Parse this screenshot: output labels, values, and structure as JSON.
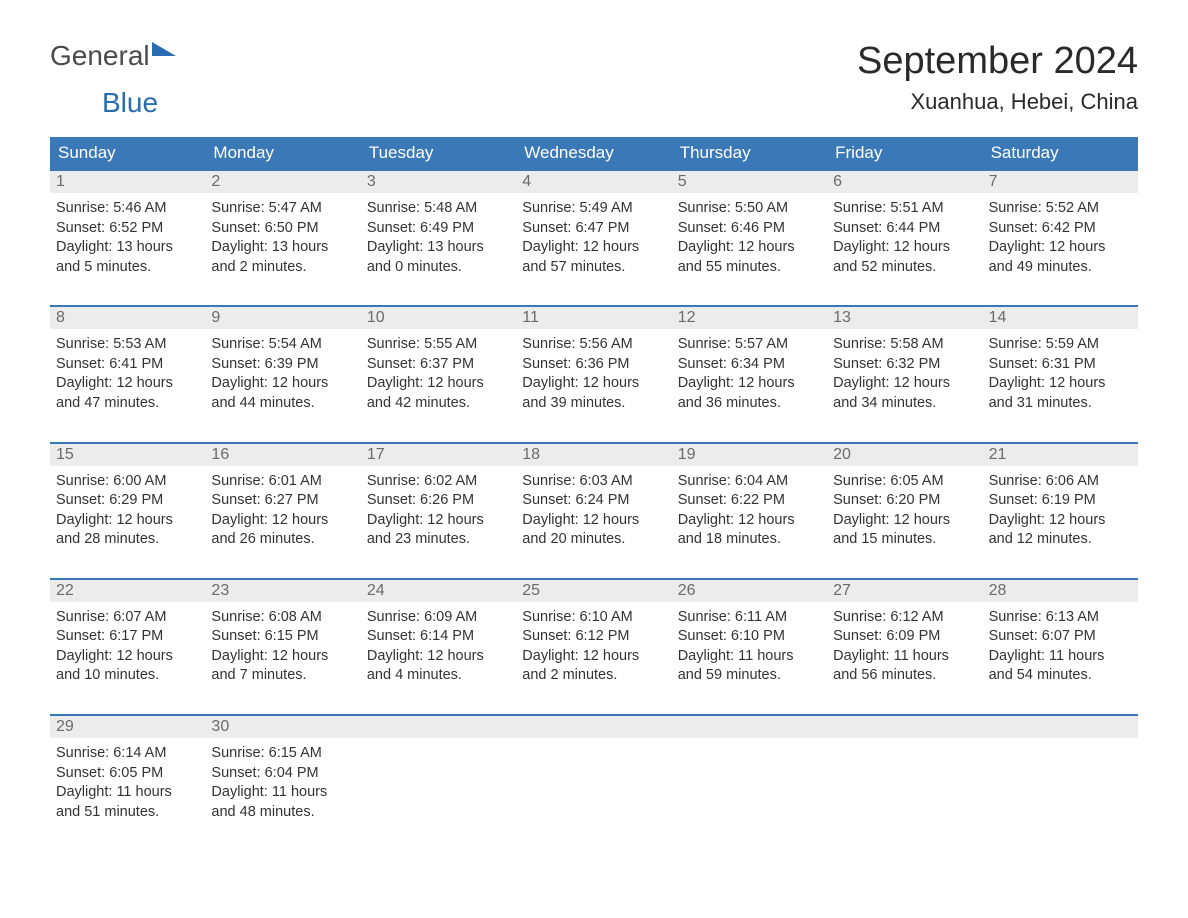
{
  "logo": {
    "text_general": "General",
    "text_blue": "Blue"
  },
  "title": "September 2024",
  "location": "Xuanhua, Hebei, China",
  "colors": {
    "header_bg": "#3b78b8",
    "header_text": "#ffffff",
    "daynum_bg": "#ececec",
    "daynum_text": "#6b6b6b",
    "body_text": "#333333",
    "row_border": "#3b78b8",
    "page_bg": "#ffffff",
    "logo_blue": "#2a6cb0",
    "logo_gray": "#4a4a4a"
  },
  "fonts": {
    "title_size_pt": 29,
    "location_size_pt": 17,
    "weekday_size_pt": 13,
    "daynum_size_pt": 12,
    "body_size_pt": 11
  },
  "weekdays": [
    "Sunday",
    "Monday",
    "Tuesday",
    "Wednesday",
    "Thursday",
    "Friday",
    "Saturday"
  ],
  "weeks": [
    [
      {
        "day": "1",
        "sunrise": "Sunrise: 5:46 AM",
        "sunset": "Sunset: 6:52 PM",
        "daylight1": "Daylight: 13 hours",
        "daylight2": "and 5 minutes."
      },
      {
        "day": "2",
        "sunrise": "Sunrise: 5:47 AM",
        "sunset": "Sunset: 6:50 PM",
        "daylight1": "Daylight: 13 hours",
        "daylight2": "and 2 minutes."
      },
      {
        "day": "3",
        "sunrise": "Sunrise: 5:48 AM",
        "sunset": "Sunset: 6:49 PM",
        "daylight1": "Daylight: 13 hours",
        "daylight2": "and 0 minutes."
      },
      {
        "day": "4",
        "sunrise": "Sunrise: 5:49 AM",
        "sunset": "Sunset: 6:47 PM",
        "daylight1": "Daylight: 12 hours",
        "daylight2": "and 57 minutes."
      },
      {
        "day": "5",
        "sunrise": "Sunrise: 5:50 AM",
        "sunset": "Sunset: 6:46 PM",
        "daylight1": "Daylight: 12 hours",
        "daylight2": "and 55 minutes."
      },
      {
        "day": "6",
        "sunrise": "Sunrise: 5:51 AM",
        "sunset": "Sunset: 6:44 PM",
        "daylight1": "Daylight: 12 hours",
        "daylight2": "and 52 minutes."
      },
      {
        "day": "7",
        "sunrise": "Sunrise: 5:52 AM",
        "sunset": "Sunset: 6:42 PM",
        "daylight1": "Daylight: 12 hours",
        "daylight2": "and 49 minutes."
      }
    ],
    [
      {
        "day": "8",
        "sunrise": "Sunrise: 5:53 AM",
        "sunset": "Sunset: 6:41 PM",
        "daylight1": "Daylight: 12 hours",
        "daylight2": "and 47 minutes."
      },
      {
        "day": "9",
        "sunrise": "Sunrise: 5:54 AM",
        "sunset": "Sunset: 6:39 PM",
        "daylight1": "Daylight: 12 hours",
        "daylight2": "and 44 minutes."
      },
      {
        "day": "10",
        "sunrise": "Sunrise: 5:55 AM",
        "sunset": "Sunset: 6:37 PM",
        "daylight1": "Daylight: 12 hours",
        "daylight2": "and 42 minutes."
      },
      {
        "day": "11",
        "sunrise": "Sunrise: 5:56 AM",
        "sunset": "Sunset: 6:36 PM",
        "daylight1": "Daylight: 12 hours",
        "daylight2": "and 39 minutes."
      },
      {
        "day": "12",
        "sunrise": "Sunrise: 5:57 AM",
        "sunset": "Sunset: 6:34 PM",
        "daylight1": "Daylight: 12 hours",
        "daylight2": "and 36 minutes."
      },
      {
        "day": "13",
        "sunrise": "Sunrise: 5:58 AM",
        "sunset": "Sunset: 6:32 PM",
        "daylight1": "Daylight: 12 hours",
        "daylight2": "and 34 minutes."
      },
      {
        "day": "14",
        "sunrise": "Sunrise: 5:59 AM",
        "sunset": "Sunset: 6:31 PM",
        "daylight1": "Daylight: 12 hours",
        "daylight2": "and 31 minutes."
      }
    ],
    [
      {
        "day": "15",
        "sunrise": "Sunrise: 6:00 AM",
        "sunset": "Sunset: 6:29 PM",
        "daylight1": "Daylight: 12 hours",
        "daylight2": "and 28 minutes."
      },
      {
        "day": "16",
        "sunrise": "Sunrise: 6:01 AM",
        "sunset": "Sunset: 6:27 PM",
        "daylight1": "Daylight: 12 hours",
        "daylight2": "and 26 minutes."
      },
      {
        "day": "17",
        "sunrise": "Sunrise: 6:02 AM",
        "sunset": "Sunset: 6:26 PM",
        "daylight1": "Daylight: 12 hours",
        "daylight2": "and 23 minutes."
      },
      {
        "day": "18",
        "sunrise": "Sunrise: 6:03 AM",
        "sunset": "Sunset: 6:24 PM",
        "daylight1": "Daylight: 12 hours",
        "daylight2": "and 20 minutes."
      },
      {
        "day": "19",
        "sunrise": "Sunrise: 6:04 AM",
        "sunset": "Sunset: 6:22 PM",
        "daylight1": "Daylight: 12 hours",
        "daylight2": "and 18 minutes."
      },
      {
        "day": "20",
        "sunrise": "Sunrise: 6:05 AM",
        "sunset": "Sunset: 6:20 PM",
        "daylight1": "Daylight: 12 hours",
        "daylight2": "and 15 minutes."
      },
      {
        "day": "21",
        "sunrise": "Sunrise: 6:06 AM",
        "sunset": "Sunset: 6:19 PM",
        "daylight1": "Daylight: 12 hours",
        "daylight2": "and 12 minutes."
      }
    ],
    [
      {
        "day": "22",
        "sunrise": "Sunrise: 6:07 AM",
        "sunset": "Sunset: 6:17 PM",
        "daylight1": "Daylight: 12 hours",
        "daylight2": "and 10 minutes."
      },
      {
        "day": "23",
        "sunrise": "Sunrise: 6:08 AM",
        "sunset": "Sunset: 6:15 PM",
        "daylight1": "Daylight: 12 hours",
        "daylight2": "and 7 minutes."
      },
      {
        "day": "24",
        "sunrise": "Sunrise: 6:09 AM",
        "sunset": "Sunset: 6:14 PM",
        "daylight1": "Daylight: 12 hours",
        "daylight2": "and 4 minutes."
      },
      {
        "day": "25",
        "sunrise": "Sunrise: 6:10 AM",
        "sunset": "Sunset: 6:12 PM",
        "daylight1": "Daylight: 12 hours",
        "daylight2": "and 2 minutes."
      },
      {
        "day": "26",
        "sunrise": "Sunrise: 6:11 AM",
        "sunset": "Sunset: 6:10 PM",
        "daylight1": "Daylight: 11 hours",
        "daylight2": "and 59 minutes."
      },
      {
        "day": "27",
        "sunrise": "Sunrise: 6:12 AM",
        "sunset": "Sunset: 6:09 PM",
        "daylight1": "Daylight: 11 hours",
        "daylight2": "and 56 minutes."
      },
      {
        "day": "28",
        "sunrise": "Sunrise: 6:13 AM",
        "sunset": "Sunset: 6:07 PM",
        "daylight1": "Daylight: 11 hours",
        "daylight2": "and 54 minutes."
      }
    ],
    [
      {
        "day": "29",
        "sunrise": "Sunrise: 6:14 AM",
        "sunset": "Sunset: 6:05 PM",
        "daylight1": "Daylight: 11 hours",
        "daylight2": "and 51 minutes."
      },
      {
        "day": "30",
        "sunrise": "Sunrise: 6:15 AM",
        "sunset": "Sunset: 6:04 PM",
        "daylight1": "Daylight: 11 hours",
        "daylight2": "and 48 minutes."
      },
      {
        "empty": true
      },
      {
        "empty": true
      },
      {
        "empty": true
      },
      {
        "empty": true
      },
      {
        "empty": true
      }
    ]
  ]
}
